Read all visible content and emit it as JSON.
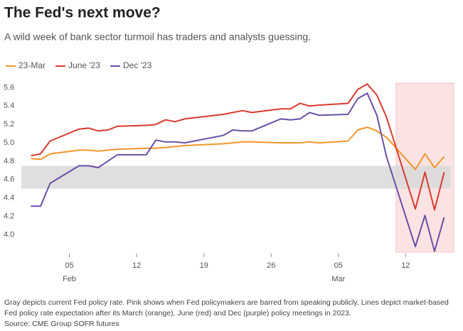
{
  "chart_data": {
    "type": "line",
    "title": "The Fed's next move?",
    "subtitle": "A wild week of bank sector turmoil has traders and analysts guessing.",
    "x": [
      "02-01",
      "02-02",
      "02-03",
      "02-06",
      "02-07",
      "02-08",
      "02-09",
      "02-10",
      "02-13",
      "02-14",
      "02-15",
      "02-16",
      "02-17",
      "02-21",
      "02-22",
      "02-23",
      "02-24",
      "02-27",
      "02-28",
      "03-01",
      "03-02",
      "03-03",
      "03-06",
      "03-07",
      "03-08",
      "03-09",
      "03-10",
      "03-13",
      "03-14",
      "03-15",
      "03-16"
    ],
    "series": [
      {
        "name": "23-Mar",
        "color": "#f0962b",
        "values": [
          4.83,
          4.82,
          4.88,
          4.92,
          4.92,
          4.91,
          4.92,
          4.93,
          4.94,
          4.94,
          4.95,
          4.96,
          4.97,
          4.99,
          5.0,
          5.01,
          5.01,
          5.0,
          5.0,
          5.0,
          5.01,
          5.0,
          5.02,
          5.14,
          5.17,
          5.13,
          5.06,
          4.71,
          4.88,
          4.73,
          4.85
        ]
      },
      {
        "name": "June '23",
        "color": "#d93b2f",
        "values": [
          4.86,
          4.88,
          5.02,
          5.15,
          5.16,
          5.13,
          5.14,
          5.18,
          5.19,
          5.2,
          5.25,
          5.23,
          5.26,
          5.31,
          5.33,
          5.35,
          5.33,
          5.37,
          5.37,
          5.43,
          5.4,
          5.41,
          5.43,
          5.58,
          5.64,
          5.52,
          5.28,
          4.28,
          4.68,
          4.27,
          4.68
        ]
      },
      {
        "name": "Dec '23",
        "color": "#6a4fa8",
        "values": [
          4.31,
          4.31,
          4.56,
          4.75,
          4.75,
          4.73,
          4.8,
          4.87,
          4.87,
          5.03,
          5.01,
          5.01,
          5.0,
          5.08,
          5.14,
          5.13,
          5.13,
          5.26,
          5.25,
          5.26,
          5.33,
          5.3,
          5.31,
          5.48,
          5.54,
          5.3,
          4.85,
          3.87,
          4.21,
          3.82,
          4.19
        ]
      }
    ],
    "xlim": [
      "01-31",
      "03-17"
    ],
    "xticks": [
      {
        "value": "02-05",
        "label": "05"
      },
      {
        "value": "02-12",
        "label": "12"
      },
      {
        "value": "02-19",
        "label": "19"
      },
      {
        "value": "02-26",
        "label": "26"
      },
      {
        "value": "03-05",
        "label": "05"
      },
      {
        "value": "03-12",
        "label": "12"
      }
    ],
    "month_labels": [
      {
        "value": "02-05",
        "label": "Feb"
      },
      {
        "value": "03-05",
        "label": "Mar"
      }
    ],
    "ylim": [
      3.81,
      5.65
    ],
    "yticks": [
      {
        "value": 4.0,
        "label": "4.0"
      },
      {
        "value": 4.2,
        "label": "4.2"
      },
      {
        "value": 4.4,
        "label": "4.4"
      },
      {
        "value": 4.6,
        "label": "4.6"
      },
      {
        "value": 4.8,
        "label": "4.8"
      },
      {
        "value": 5.0,
        "label": "5.0"
      },
      {
        "value": 5.2,
        "label": "5.2"
      },
      {
        "value": 5.4,
        "label": "5.4"
      },
      {
        "value": 5.6,
        "label": "5.6"
      }
    ],
    "policy_rate_band": [
      4.5,
      4.75
    ],
    "blackout_period": [
      "03-11",
      "03-17"
    ],
    "note": "Gray depicts current Fed policy rate. Pink shows when Fed policymakers are barred from speaking publicly. Lines depict market-based Fed policy rate expectation after its March (orange), June (red) and Dec (purple) policy meetings in 2023.",
    "source": "Source: CME Group SOFR futures"
  }
}
